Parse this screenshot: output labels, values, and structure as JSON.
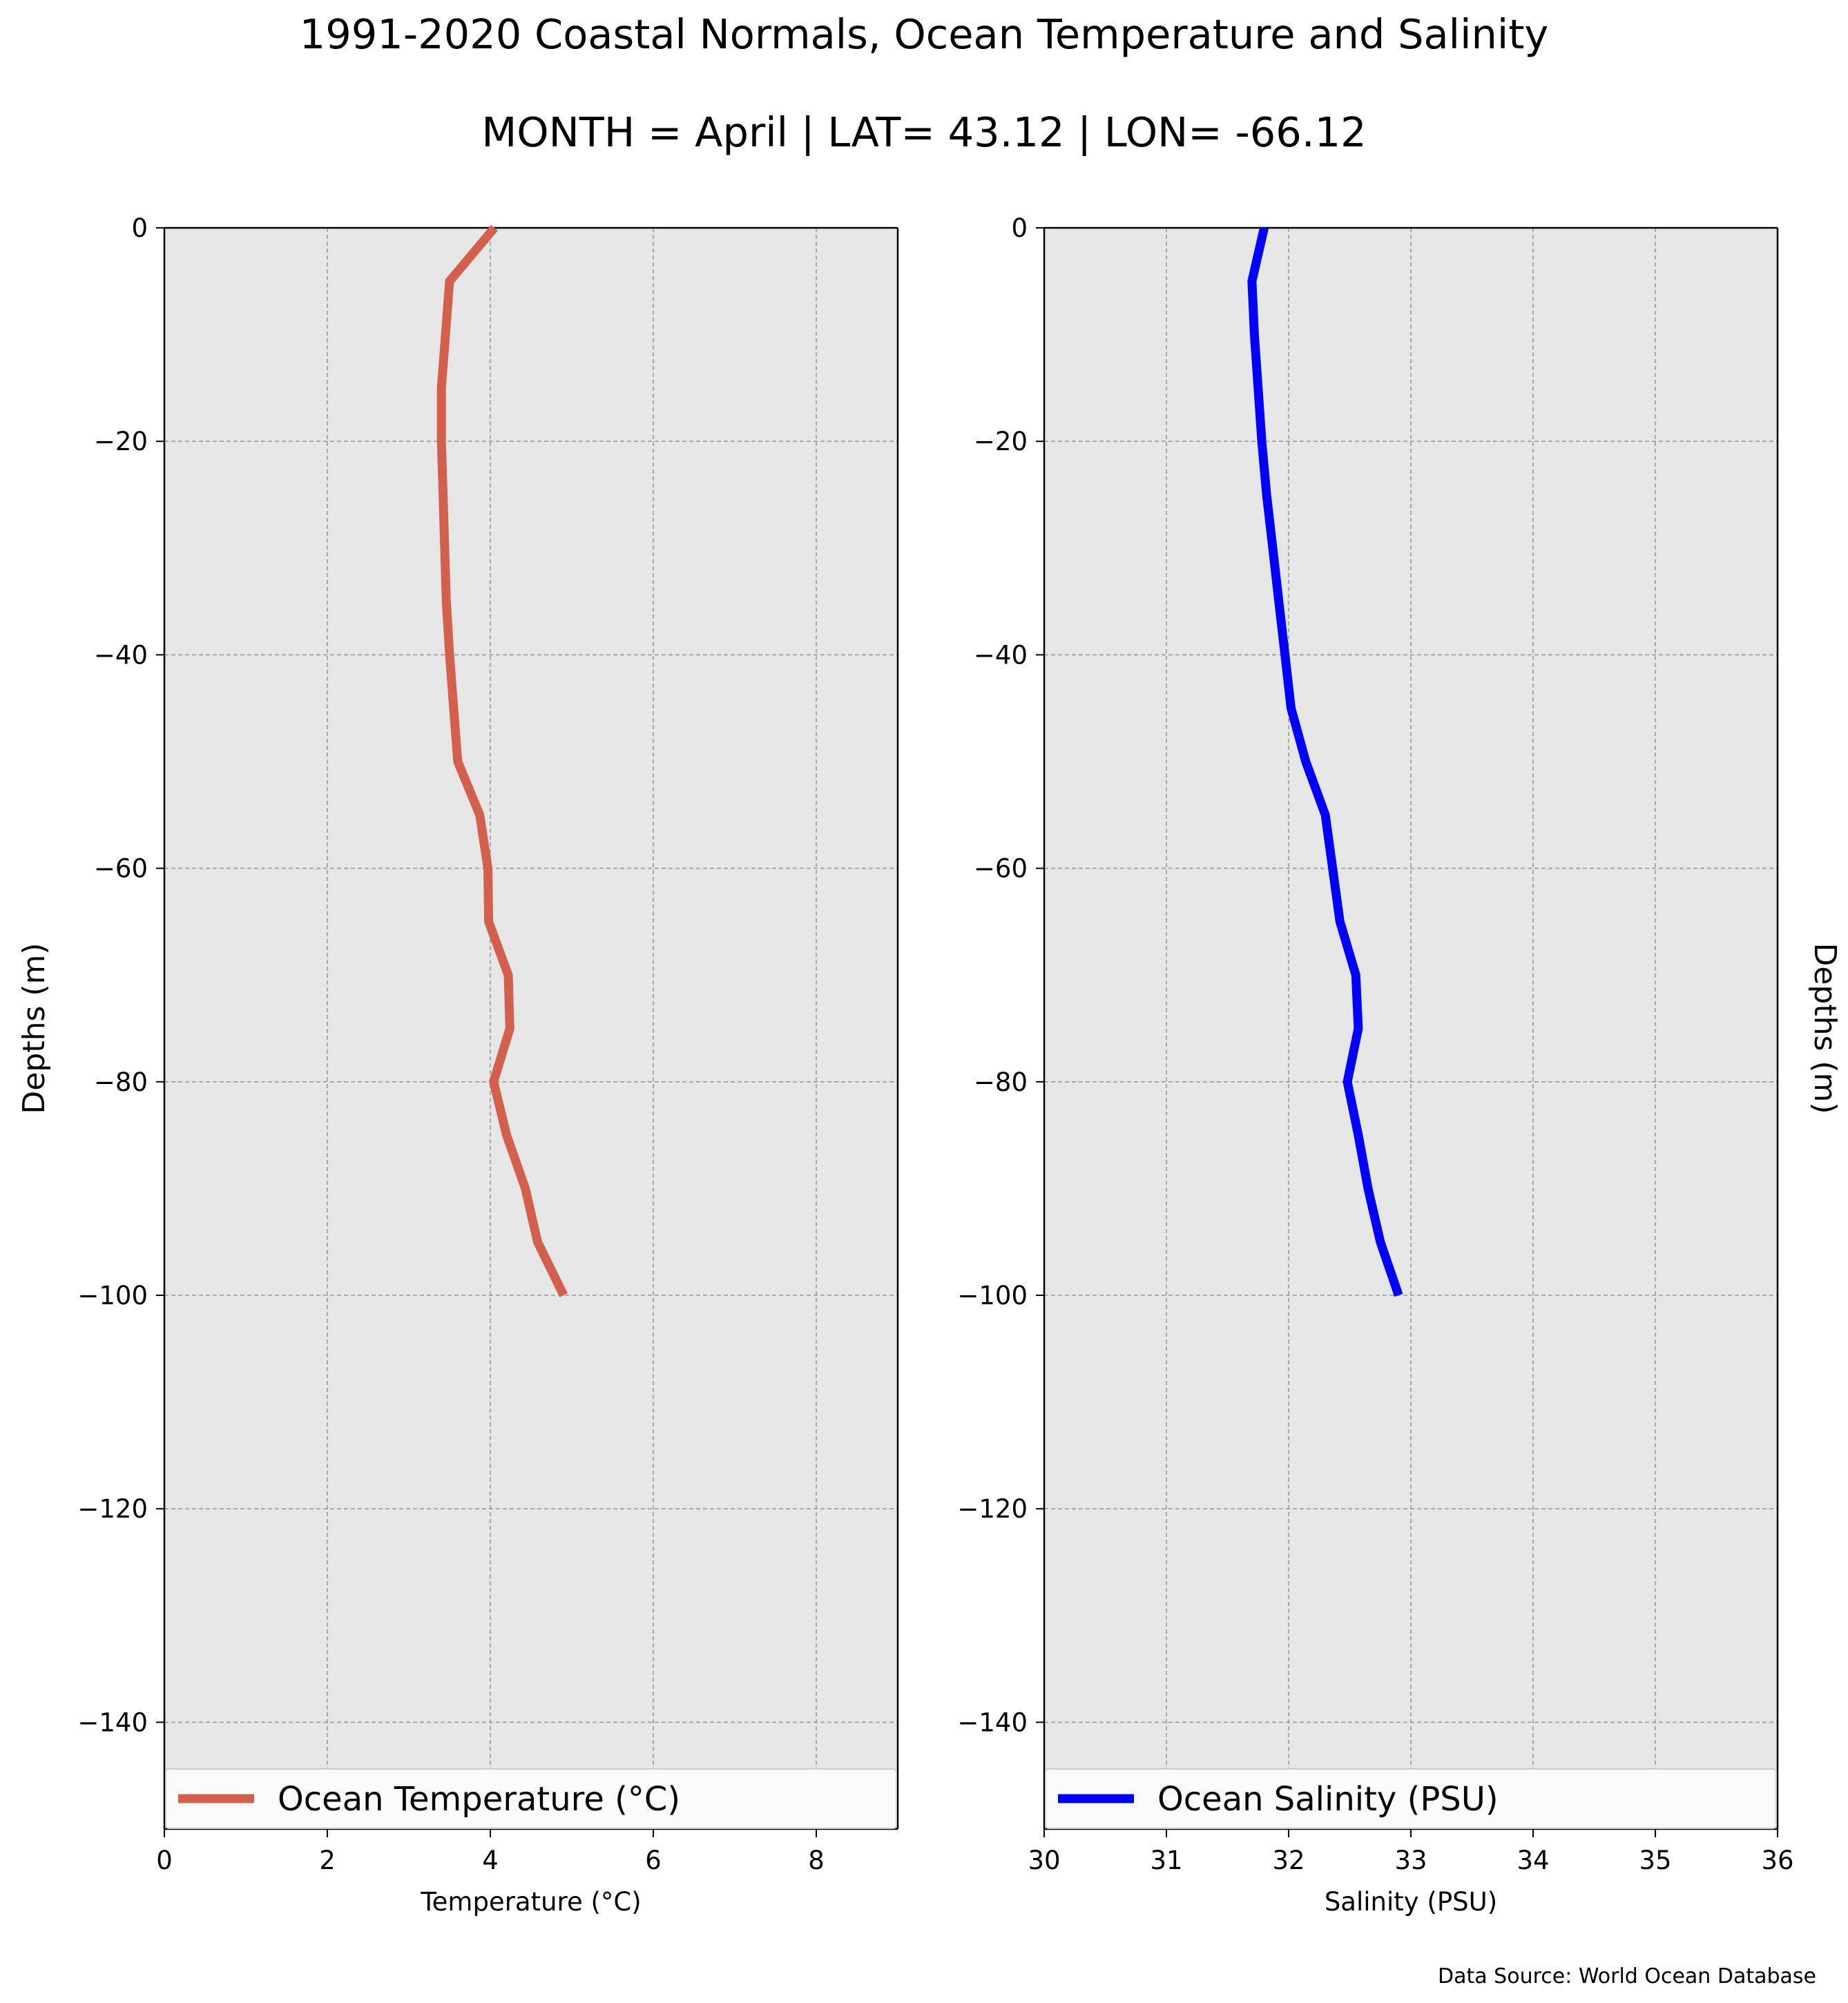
{
  "title": "1991-2020 Coastal Normals, Ocean Temperature and Salinity",
  "subtitle": "MONTH = April | LAT= 43.12 | LON= -66.12",
  "source": "Data Source: World Ocean Database",
  "chart_data": [
    {
      "type": "line",
      "xlabel": "Temperature (°C)",
      "ylabel": "Depths (m)",
      "ylabel_side": "left",
      "xlim": [
        0,
        9
      ],
      "ylim": [
        -150,
        0
      ],
      "xticks": [
        0,
        2,
        4,
        6,
        8
      ],
      "yticks": [
        0,
        -20,
        -40,
        -60,
        -80,
        -100,
        -120,
        -140
      ],
      "grid": true,
      "legend_position": "bottom",
      "series": [
        {
          "name": "Ocean Temperature (°C)",
          "color": "#d35f4d",
          "points": [
            {
              "x": 4.05,
              "y": 0
            },
            {
              "x": 3.5,
              "y": -5
            },
            {
              "x": 3.45,
              "y": -10
            },
            {
              "x": 3.4,
              "y": -15
            },
            {
              "x": 3.4,
              "y": -20
            },
            {
              "x": 3.42,
              "y": -25
            },
            {
              "x": 3.44,
              "y": -30
            },
            {
              "x": 3.46,
              "y": -35
            },
            {
              "x": 3.5,
              "y": -40
            },
            {
              "x": 3.55,
              "y": -45
            },
            {
              "x": 3.6,
              "y": -50
            },
            {
              "x": 3.87,
              "y": -55
            },
            {
              "x": 3.97,
              "y": -60
            },
            {
              "x": 3.98,
              "y": -65
            },
            {
              "x": 4.22,
              "y": -70
            },
            {
              "x": 4.24,
              "y": -75
            },
            {
              "x": 4.04,
              "y": -80
            },
            {
              "x": 4.2,
              "y": -85
            },
            {
              "x": 4.43,
              "y": -90
            },
            {
              "x": 4.58,
              "y": -95
            },
            {
              "x": 4.9,
              "y": -100
            }
          ]
        }
      ]
    },
    {
      "type": "line",
      "xlabel": "Salinity (PSU)",
      "ylabel": "Depths (m)",
      "ylabel_side": "right",
      "xlim": [
        30,
        36
      ],
      "ylim": [
        -150,
        0
      ],
      "xticks": [
        30,
        31,
        32,
        33,
        34,
        35,
        36
      ],
      "yticks": [
        0,
        -20,
        -40,
        -60,
        -80,
        -100,
        -120,
        -140
      ],
      "grid": true,
      "legend_position": "bottom",
      "series": [
        {
          "name": "Ocean Salinity (PSU)",
          "color": "#0000ff",
          "points": [
            {
              "x": 31.8,
              "y": 0
            },
            {
              "x": 31.7,
              "y": -5
            },
            {
              "x": 31.72,
              "y": -10
            },
            {
              "x": 31.75,
              "y": -15
            },
            {
              "x": 31.78,
              "y": -20
            },
            {
              "x": 31.82,
              "y": -25
            },
            {
              "x": 31.87,
              "y": -30
            },
            {
              "x": 31.92,
              "y": -35
            },
            {
              "x": 31.97,
              "y": -40
            },
            {
              "x": 32.02,
              "y": -45
            },
            {
              "x": 32.14,
              "y": -50
            },
            {
              "x": 32.3,
              "y": -55
            },
            {
              "x": 32.36,
              "y": -60
            },
            {
              "x": 32.42,
              "y": -65
            },
            {
              "x": 32.55,
              "y": -70
            },
            {
              "x": 32.57,
              "y": -75
            },
            {
              "x": 32.48,
              "y": -80
            },
            {
              "x": 32.57,
              "y": -85
            },
            {
              "x": 32.65,
              "y": -90
            },
            {
              "x": 32.75,
              "y": -95
            },
            {
              "x": 32.9,
              "y": -100
            }
          ]
        }
      ]
    }
  ]
}
